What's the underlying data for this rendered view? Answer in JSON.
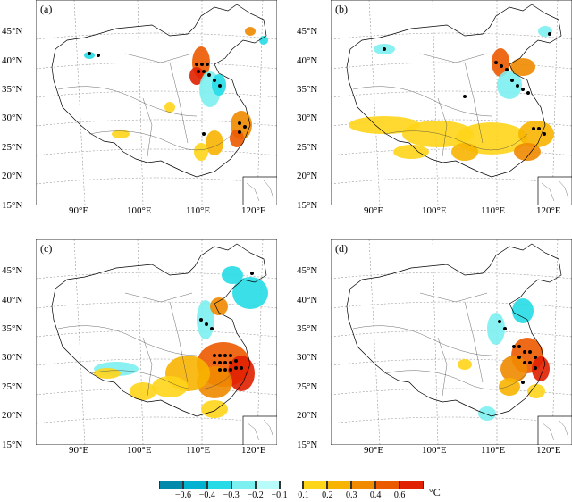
{
  "panels": [
    {
      "label": "(a)"
    },
    {
      "label": "(b)"
    },
    {
      "label": "(c)"
    },
    {
      "label": "(d)"
    }
  ],
  "lat_labels": [
    "45°N",
    "40°N",
    "35°N",
    "30°N",
    "25°N",
    "20°N",
    "15°N"
  ],
  "lon_labels": [
    "90°E",
    "100°E",
    "110°E",
    "120°E"
  ],
  "colorbar": {
    "ticks": [
      "−0.6",
      "−0.4",
      "−0.3",
      "−0.2",
      "−0.1",
      "0.1",
      "0.2",
      "0.3",
      "0.4",
      "0.6"
    ],
    "unit": "°C",
    "colors": [
      "#0089ab",
      "#00b2cf",
      "#26dbe6",
      "#7cf0f0",
      "#b8fbfb",
      "#ffffff",
      "#ffd51a",
      "#f7b400",
      "#f08a00",
      "#ec5a00",
      "#e02000"
    ]
  }
}
